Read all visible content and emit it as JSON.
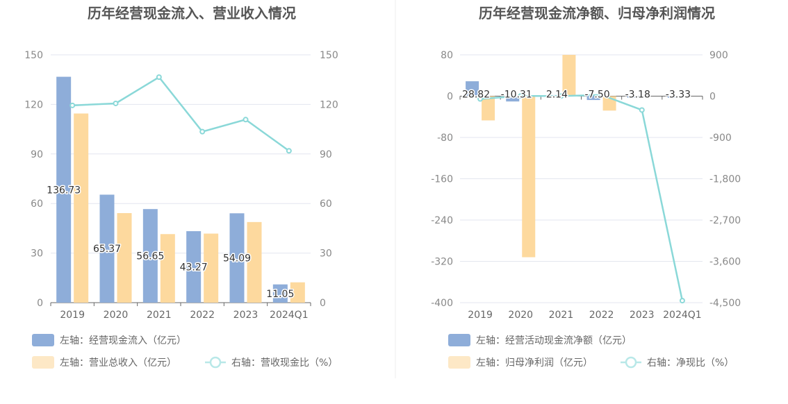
{
  "chart_data": [
    {
      "type": "bar",
      "title": "历年经营现金流入、营业收入情况",
      "categories": [
        "2019",
        "2020",
        "2021",
        "2022",
        "2023",
        "2024Q1"
      ],
      "left_axis": {
        "ticks": [
          "0",
          "30",
          "60",
          "90",
          "120",
          "150"
        ],
        "ylim": [
          0,
          150
        ]
      },
      "right_axis": {
        "ticks": [
          "0",
          "30",
          "60",
          "90",
          "120",
          "150"
        ],
        "ylim": [
          0,
          150
        ]
      },
      "series": [
        {
          "name": "左轴：经营现金流入（亿元）",
          "type": "bar",
          "axis": "left",
          "color": "#8eadd9",
          "values": [
            136.73,
            65.37,
            56.65,
            43.27,
            54.09,
            11.05
          ],
          "labels": [
            "136.73",
            "65.37",
            "56.65",
            "43.27",
            "54.09",
            "11.05"
          ]
        },
        {
          "name": "左轴：营业总收入（亿元）",
          "type": "bar",
          "axis": "left",
          "color": "#fdd99e",
          "values": [
            114.5,
            54.2,
            41.5,
            41.8,
            48.8,
            12.3
          ]
        },
        {
          "name": "右轴：营收现金比（%）",
          "type": "line",
          "axis": "right",
          "color": "#8ad8d8",
          "values": [
            119.4,
            120.6,
            136.5,
            103.5,
            110.8,
            91.9
          ]
        }
      ],
      "legend": "bottom"
    },
    {
      "type": "bar",
      "title": "历年经营现金流净额、归母净利润情况",
      "categories": [
        "2019",
        "2020",
        "2021",
        "2022",
        "2023",
        "2024Q1"
      ],
      "left_axis": {
        "ticks": [
          "-400",
          "-320",
          "-240",
          "-160",
          "-80",
          "0",
          "80"
        ],
        "ylim": [
          -400,
          80
        ]
      },
      "right_axis": {
        "ticks": [
          "-4,500",
          "-3,600",
          "-2,700",
          "-1,800",
          "-900",
          "0",
          "900"
        ],
        "ylim": [
          -4500,
          900
        ]
      },
      "series": [
        {
          "name": "左轴：经营活动现金流净额（亿元）",
          "type": "bar",
          "axis": "left",
          "color": "#8eadd9",
          "values": [
            28.82,
            -10.31,
            2.14,
            -7.5,
            -3.18,
            -3.33
          ],
          "labels": [
            "28.82",
            "-10.31",
            "2.14",
            "-7.50",
            "-3.18",
            "-3.33"
          ]
        },
        {
          "name": "左轴：归母净利润（亿元）",
          "type": "bar",
          "axis": "left",
          "color": "#fdd99e",
          "values": [
            -47,
            -312,
            80,
            -28,
            0,
            0
          ]
        },
        {
          "name": "右轴：净现比（%）",
          "type": "line",
          "axis": "right",
          "color": "#8ad8d8",
          "values": [
            -61,
            3.3,
            2.7,
            26.8,
            -302,
            -4456
          ]
        }
      ],
      "legend": "bottom"
    }
  ]
}
